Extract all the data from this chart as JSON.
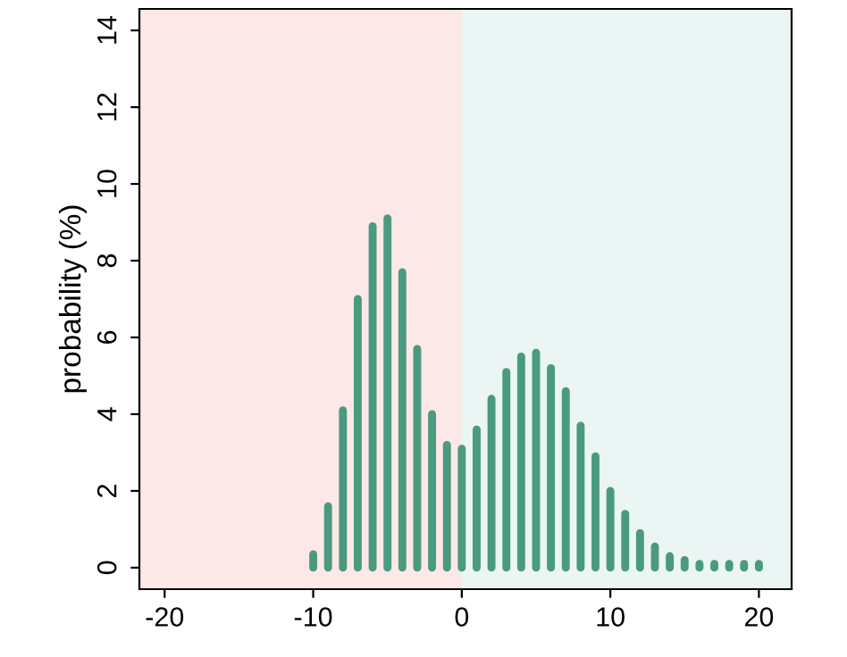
{
  "chart_data": {
    "type": "bar",
    "ylabel": "probability (%)",
    "x": [
      -10,
      -9,
      -8,
      -7,
      -6,
      -5,
      -4,
      -3,
      -2,
      -1,
      0,
      1,
      2,
      3,
      4,
      5,
      6,
      7,
      8,
      9,
      10,
      11,
      12,
      13,
      14,
      15,
      16,
      17,
      18,
      19,
      20
    ],
    "values": [
      0.35,
      1.6,
      4.1,
      7.0,
      8.9,
      9.1,
      7.7,
      5.7,
      4.0,
      3.2,
      3.1,
      3.6,
      4.4,
      5.1,
      5.5,
      5.6,
      5.2,
      4.6,
      3.7,
      2.9,
      2.0,
      1.4,
      0.9,
      0.55,
      0.3,
      0.2,
      0.1,
      0.1,
      0.1,
      0.1,
      0.1
    ],
    "color": "#4a9a80",
    "xlim": [
      -21.7,
      22.2
    ],
    "ylim": [
      -0.56,
      14.56
    ],
    "xticks": [
      -20,
      -10,
      0,
      10,
      20
    ],
    "yticks": [
      0,
      2,
      4,
      6,
      8,
      10,
      12,
      14
    ],
    "bands": [
      {
        "axis": "x",
        "from": -21.7,
        "to": 0,
        "color": "#fde8e8"
      },
      {
        "axis": "x",
        "from": 0,
        "to": 22.2,
        "color": "#ebf5f3"
      }
    ],
    "grid": false
  }
}
